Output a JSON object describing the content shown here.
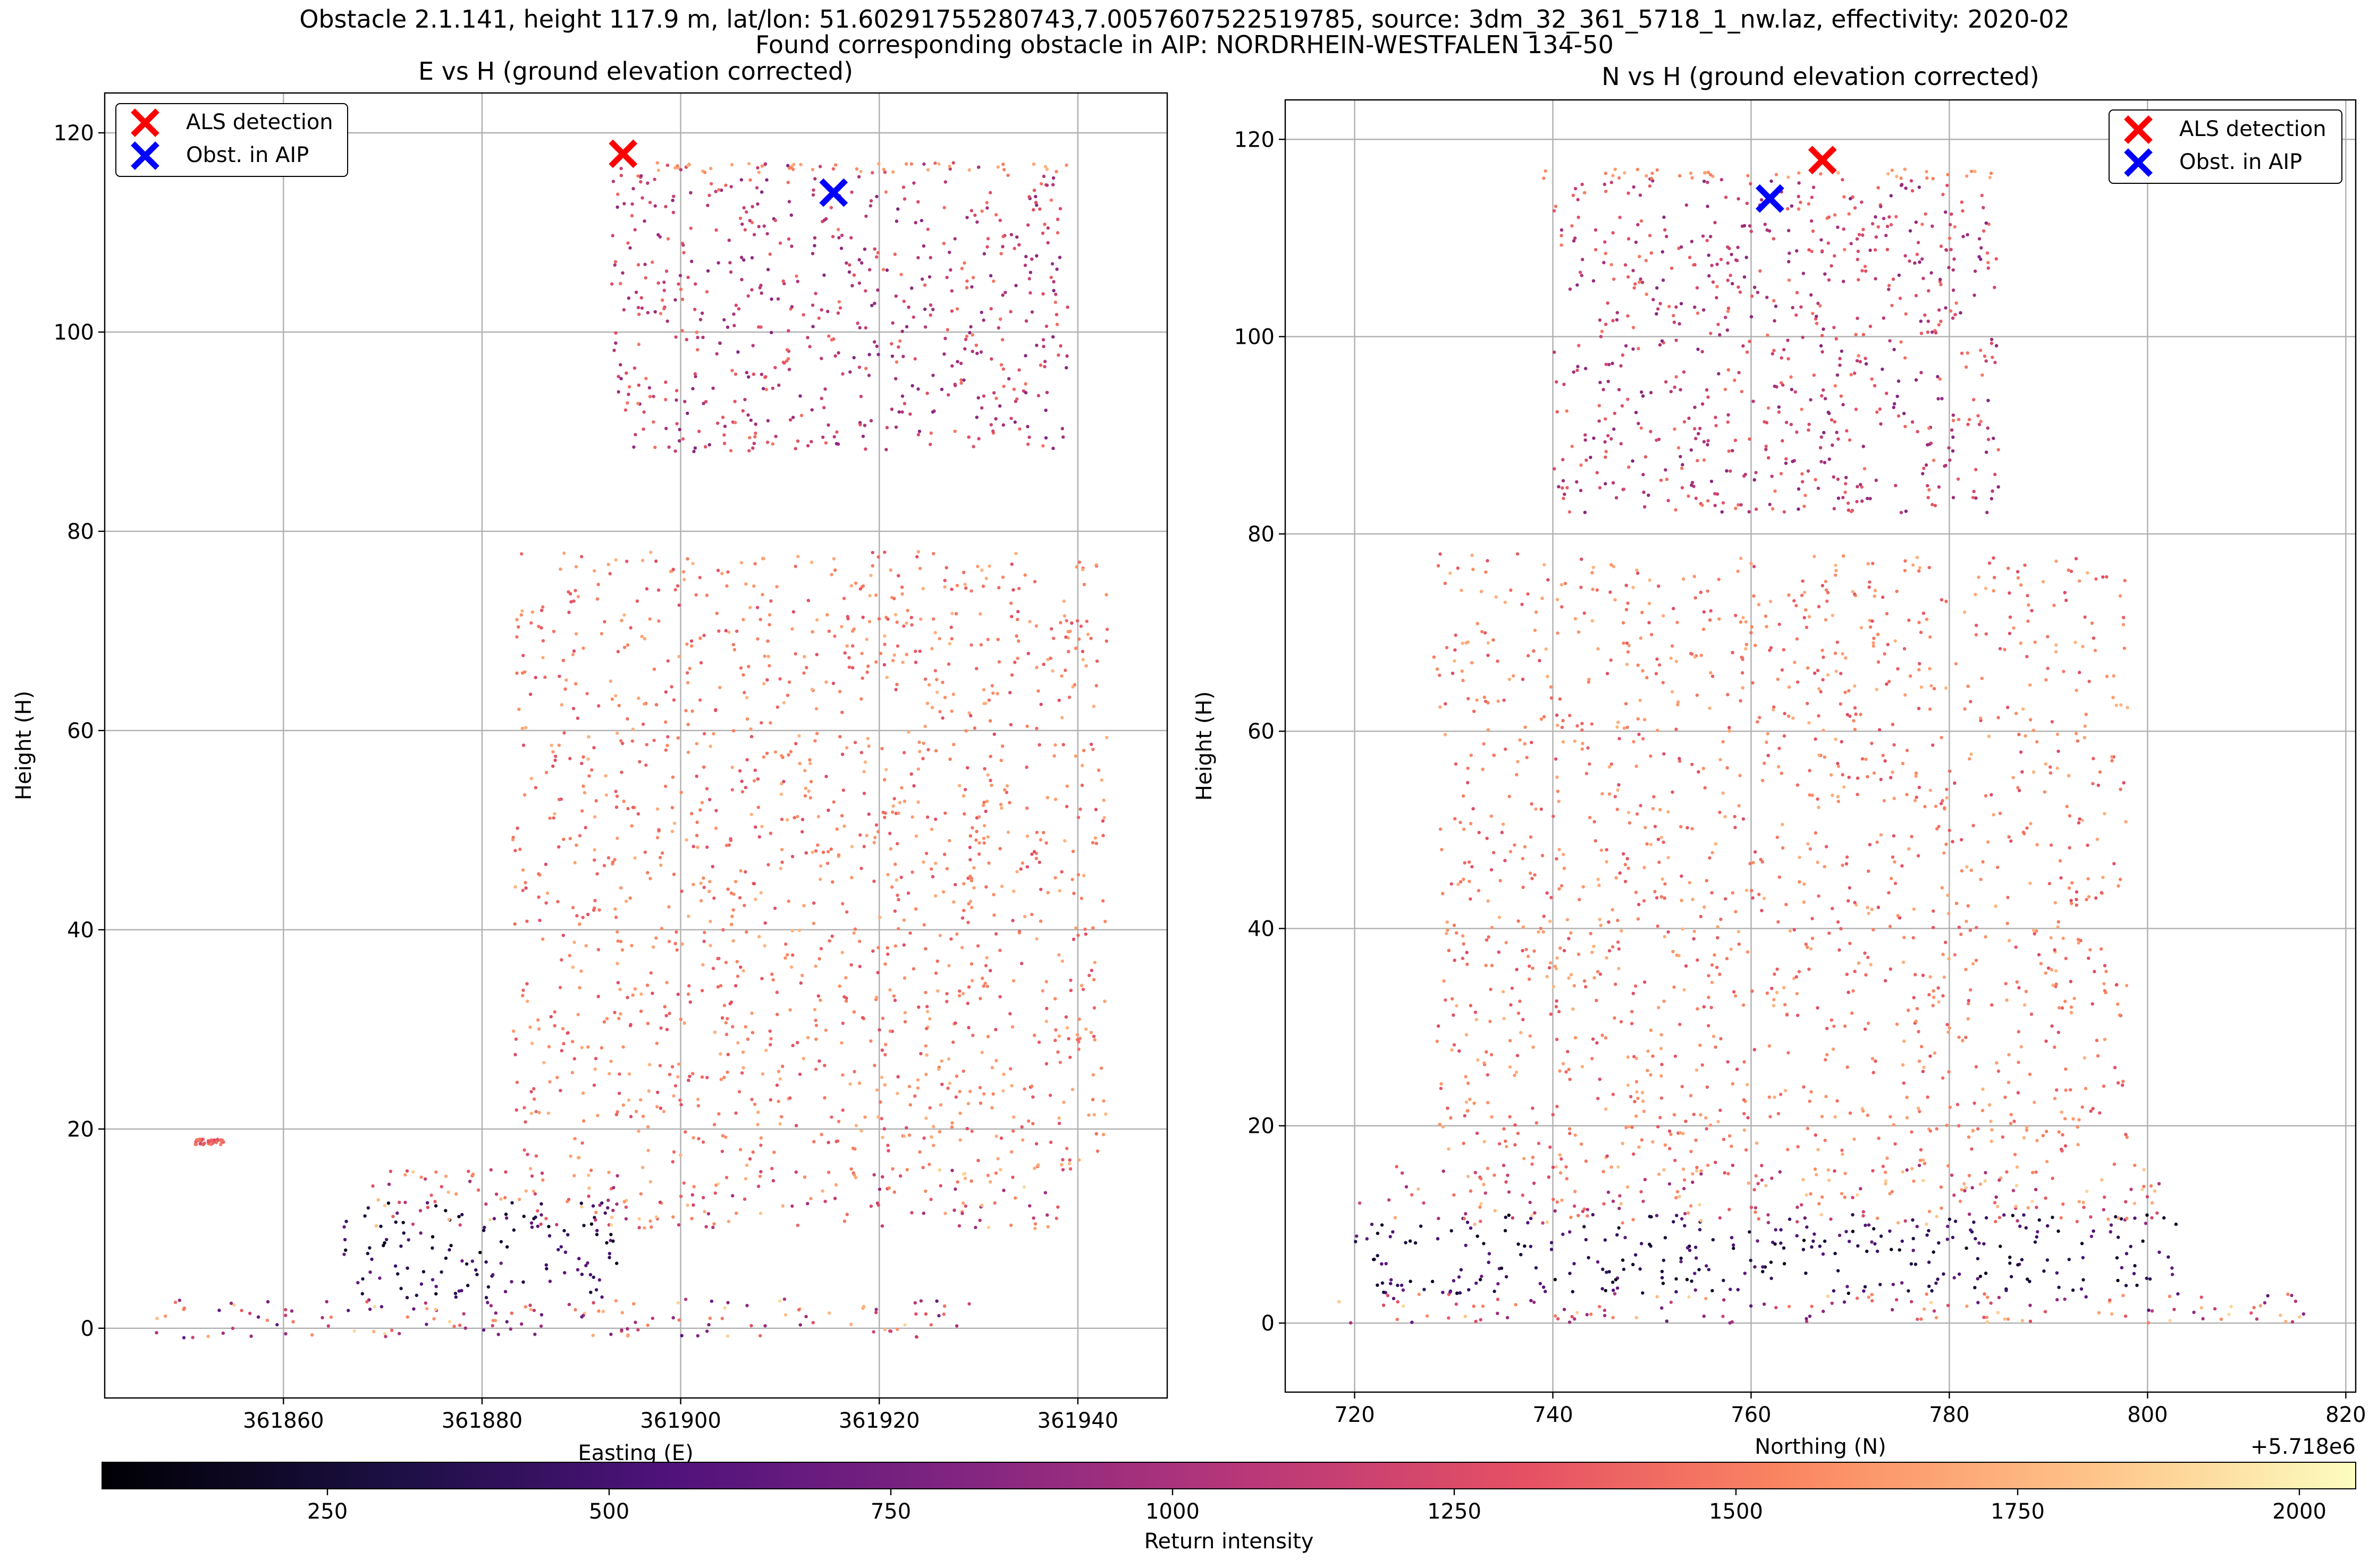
{
  "figure": {
    "title_line1": "Obstacle 2.1.141, height 117.9 m, lat/lon: 51.60291755280743,7.0057607522519785, source: 3dm_32_361_5718_1_nw.laz, effectivity: 2020-02",
    "title_line2": "Found corresponding obstacle in AIP: NORDRHEIN-WESTFALEN 134-50"
  },
  "colors": {
    "als_marker": "#ff0000",
    "aip_marker": "#0000ff",
    "grid": "#b0b0b0",
    "colormap": "magma"
  },
  "chart_data": [
    {
      "type": "scatter",
      "title": "E vs H (ground elevation corrected)",
      "xlabel": "Easting (E)",
      "ylabel": "Height (H)",
      "xlim": [
        361842,
        361949
      ],
      "ylim": [
        -7,
        124
      ],
      "xticks": [
        361860,
        361880,
        361900,
        361920,
        361940
      ],
      "yticks": [
        0,
        20,
        40,
        60,
        80,
        100,
        120
      ],
      "grid": true,
      "legend": {
        "placement": "upper-left",
        "entries": [
          "ALS detection",
          "Obst. in AIP"
        ]
      },
      "markers": [
        {
          "name": "ALS detection",
          "x": 361894.2,
          "y": 117.9,
          "color": "#ff0000"
        },
        {
          "name": "Obst. in AIP",
          "x": 361915.4,
          "y": 114.0,
          "color": "#0000ff"
        }
      ],
      "point_cloud": {
        "intensity_range": [
          50,
          2050
        ],
        "regions": [
          {
            "x": [
              361847,
              361930
            ],
            "y": [
              -1,
              3
            ],
            "intensity": [
              600,
              1900
            ]
          },
          {
            "x": [
              361866,
              361894
            ],
            "y": [
              3,
              13
            ],
            "intensity": [
              100,
              700
            ]
          },
          {
            "x": [
              361869,
              361939
            ],
            "y": [
              10,
              16
            ],
            "intensity": [
              900,
              1900
            ]
          },
          {
            "x": [
              361883,
              361943
            ],
            "y": [
              16,
              78
            ],
            "intensity": [
              1250,
              1750
            ]
          },
          {
            "x": [
              361893,
              361939
            ],
            "y": [
              88,
              117
            ],
            "intensity": [
              800,
              1500
            ]
          },
          {
            "x": [
              361893,
              361939
            ],
            "y": [
              116,
              117
            ],
            "intensity": [
              1500,
              1750
            ]
          },
          {
            "x": [
              361851,
              361854
            ],
            "y": [
              18.4,
              19.0
            ],
            "intensity": [
              1200,
              1500
            ]
          }
        ]
      }
    },
    {
      "type": "scatter",
      "title": "N vs H (ground elevation corrected)",
      "xlabel": "Northing (N)",
      "ylabel": "Height (H)",
      "offset_label": "+5.718e6",
      "xlim": [
        5718713,
        5718821
      ],
      "ylim": [
        -7,
        124
      ],
      "xticks": [
        720,
        740,
        760,
        780,
        800,
        820
      ],
      "yticks": [
        0,
        20,
        40,
        60,
        80,
        100,
        120
      ],
      "grid": true,
      "legend": {
        "placement": "upper-right",
        "entries": [
          "ALS detection",
          "Obst. in AIP"
        ]
      },
      "markers": [
        {
          "name": "ALS detection",
          "x": 5718767.2,
          "y": 117.9,
          "color": "#ff0000"
        },
        {
          "name": "Obst. in AIP",
          "x": 5718761.9,
          "y": 114.0,
          "color": "#0000ff"
        }
      ],
      "point_cloud": {
        "intensity_range": [
          50,
          2050
        ],
        "regions": [
          {
            "x": [
              5718718,
              5718816
            ],
            "y": [
              0,
              3
            ],
            "intensity": [
              600,
              1900
            ]
          },
          {
            "x": [
              5718720,
              5718803
            ],
            "y": [
              3,
              11
            ],
            "intensity": [
              100,
              700
            ]
          },
          {
            "x": [
              5718720,
              5718803
            ],
            "y": [
              10,
              16
            ],
            "intensity": [
              900,
              1900
            ]
          },
          {
            "x": [
              5718728,
              5718798
            ],
            "y": [
              16,
              78
            ],
            "intensity": [
              1250,
              1750
            ]
          },
          {
            "x": [
              5718740,
              5718785
            ],
            "y": [
              82,
              116
            ],
            "intensity": [
              800,
              1500
            ]
          },
          {
            "x": [
              5718739,
              5718785
            ],
            "y": [
              116,
              117
            ],
            "intensity": [
              1500,
              1750
            ]
          }
        ]
      }
    }
  ],
  "colorbar": {
    "label": "Return intensity",
    "vmin": 50,
    "vmax": 2050,
    "ticks": [
      250,
      500,
      750,
      1000,
      1250,
      1500,
      1750,
      2000
    ]
  }
}
